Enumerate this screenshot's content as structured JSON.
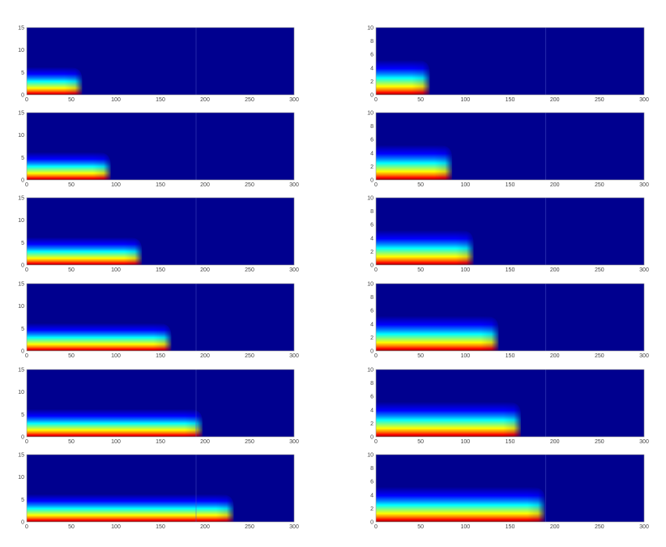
{
  "colormap": "jet",
  "colormap_stops": [
    "#00008f",
    "#0000ff",
    "#0080ff",
    "#00ffff",
    "#80ff80",
    "#ffff00",
    "#ff8000",
    "#ff0000",
    "#800000"
  ],
  "chart_data": [
    {
      "type": "heatmap",
      "panel": "left-1",
      "xlim": [
        0,
        300
      ],
      "ylim": [
        0,
        15
      ],
      "front_x": 55,
      "xticks": [
        "0",
        "50",
        "100",
        "150",
        "200",
        "250",
        "300"
      ],
      "yticks": [
        "0",
        "5",
        "10",
        "15"
      ]
    },
    {
      "type": "heatmap",
      "panel": "right-1",
      "xlim": [
        0,
        300
      ],
      "ylim": [
        0,
        10
      ],
      "front_x": 53,
      "xticks": [
        "0",
        "50",
        "100",
        "150",
        "200",
        "250",
        "300"
      ],
      "yticks": [
        "0",
        "2",
        "4",
        "6",
        "8",
        "10"
      ]
    },
    {
      "type": "heatmap",
      "panel": "left-2",
      "xlim": [
        0,
        300
      ],
      "ylim": [
        0,
        15
      ],
      "front_x": 87,
      "xticks": [
        "0",
        "50",
        "100",
        "150",
        "200",
        "250",
        "300"
      ],
      "yticks": [
        "0",
        "5",
        "10",
        "15"
      ]
    },
    {
      "type": "heatmap",
      "panel": "right-2",
      "xlim": [
        0,
        300
      ],
      "ylim": [
        0,
        10
      ],
      "front_x": 78,
      "xticks": [
        "0",
        "50",
        "100",
        "150",
        "200",
        "250",
        "300"
      ],
      "yticks": [
        "0",
        "2",
        "4",
        "6",
        "8",
        "10"
      ]
    },
    {
      "type": "heatmap",
      "panel": "left-3",
      "xlim": [
        0,
        300
      ],
      "ylim": [
        0,
        15
      ],
      "front_x": 122,
      "xticks": [
        "0",
        "50",
        "100",
        "150",
        "200",
        "250",
        "300"
      ],
      "yticks": [
        "0",
        "5",
        "10",
        "15"
      ]
    },
    {
      "type": "heatmap",
      "panel": "right-3",
      "xlim": [
        0,
        300
      ],
      "ylim": [
        0,
        10
      ],
      "front_x": 102,
      "xticks": [
        "0",
        "50",
        "100",
        "150",
        "200",
        "250",
        "300"
      ],
      "yticks": [
        "0",
        "2",
        "4",
        "6",
        "8",
        "10"
      ]
    },
    {
      "type": "heatmap",
      "panel": "left-4",
      "xlim": [
        0,
        300
      ],
      "ylim": [
        0,
        15
      ],
      "front_x": 155,
      "xticks": [
        "0",
        "50",
        "100",
        "150",
        "200",
        "250",
        "300"
      ],
      "yticks": [
        "0",
        "5",
        "10",
        "15"
      ]
    },
    {
      "type": "heatmap",
      "panel": "right-4",
      "xlim": [
        0,
        300
      ],
      "ylim": [
        0,
        10
      ],
      "front_x": 130,
      "xticks": [
        "0",
        "50",
        "100",
        "150",
        "200",
        "250",
        "300"
      ],
      "yticks": [
        "0",
        "2",
        "4",
        "6",
        "8",
        "10"
      ]
    },
    {
      "type": "heatmap",
      "panel": "left-5",
      "xlim": [
        0,
        300
      ],
      "ylim": [
        0,
        15
      ],
      "front_x": 190,
      "xticks": [
        "0",
        "50",
        "100",
        "150",
        "200",
        "250",
        "300"
      ],
      "yticks": [
        "0",
        "5",
        "10",
        "15"
      ]
    },
    {
      "type": "heatmap",
      "panel": "right-5",
      "xlim": [
        0,
        300
      ],
      "ylim": [
        0,
        10
      ],
      "front_x": 155,
      "xticks": [
        "0",
        "50",
        "100",
        "150",
        "200",
        "250",
        "300"
      ],
      "yticks": [
        "0",
        "2",
        "4",
        "6",
        "8",
        "10"
      ]
    },
    {
      "type": "heatmap",
      "panel": "left-6",
      "xlim": [
        0,
        300
      ],
      "ylim": [
        0,
        15
      ],
      "front_x": 225,
      "xticks": [
        "0",
        "50",
        "100",
        "150",
        "200",
        "250",
        "300"
      ],
      "yticks": [
        "0",
        "5",
        "10",
        "15"
      ]
    },
    {
      "type": "heatmap",
      "panel": "right-6",
      "xlim": [
        0,
        300
      ],
      "ylim": [
        0,
        10
      ],
      "front_x": 182,
      "xticks": [
        "0",
        "50",
        "100",
        "150",
        "200",
        "250",
        "300"
      ],
      "yticks": [
        "0",
        "2",
        "4",
        "6",
        "8",
        "10"
      ]
    }
  ]
}
